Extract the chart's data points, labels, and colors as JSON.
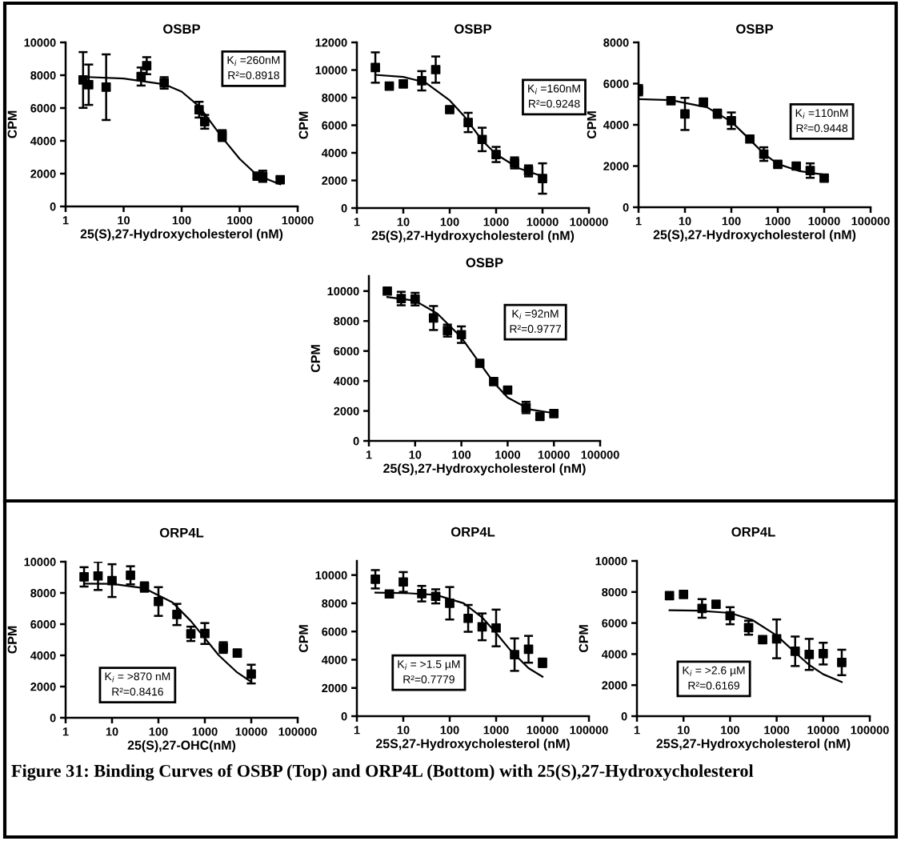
{
  "chart_data": [
    {
      "type": "scatter",
      "title": "OSBP",
      "xlabel": "25(S),27-Hydroxycholesterol (nM)",
      "ylabel": "CPM",
      "log": "x",
      "xlim": [
        1,
        10000
      ],
      "xticks": [
        1,
        10,
        100,
        1000,
        10000
      ],
      "ylim": [
        0,
        10000
      ],
      "yticks": [
        0,
        2000,
        4000,
        6000,
        8000,
        10000
      ],
      "series": [
        {
          "color": "#000000",
          "marker": "square",
          "x": [
            2,
            2.5,
            5,
            20,
            25,
            50,
            200,
            250,
            500,
            2000,
            2500,
            5000
          ],
          "values": [
            7710,
            7420,
            7270,
            7920,
            8580,
            7530,
            5900,
            5160,
            4320,
            1850,
            1840,
            1630
          ],
          "errors": [
            1700,
            1230,
            2000,
            550,
            520,
            350,
            480,
            420,
            330,
            150,
            340,
            150
          ]
        },
        {
          "type": "line",
          "color": "#000000",
          "line_style": "solid",
          "x": [
            2,
            10,
            50,
            100,
            200,
            500,
            1000,
            2000,
            5000
          ],
          "values": [
            7900,
            7800,
            7450,
            7000,
            6100,
            4200,
            2900,
            1900,
            1350
          ]
        }
      ],
      "annotations": [
        "K$_{i}$ =260nM",
        "R²=0.8918"
      ]
    },
    {
      "type": "scatter",
      "title": "OSBP",
      "xlabel": "25(S),27-Hydroxycholesterol (nM)",
      "ylabel": "CPM",
      "log": "x",
      "xlim": [
        1,
        100000
      ],
      "xticks": [
        1,
        10,
        100,
        1000,
        10000,
        100000
      ],
      "ylim": [
        0,
        12000
      ],
      "yticks": [
        0,
        2000,
        4000,
        6000,
        8000,
        10000,
        12000
      ],
      "series": [
        {
          "color": "#000000",
          "marker": "square",
          "x": [
            2.5,
            5,
            10,
            25,
            50,
            100,
            250,
            500,
            1000,
            2500,
            5000,
            10000
          ],
          "values": [
            10180,
            8830,
            8990,
            9220,
            10030,
            7130,
            6200,
            4970,
            3880,
            3270,
            2690,
            2140
          ],
          "errors": [
            1100,
            null,
            null,
            700,
            950,
            null,
            700,
            850,
            550,
            400,
            400,
            1100
          ]
        },
        {
          "type": "line",
          "color": "#000000",
          "line_style": "solid",
          "x": [
            2.5,
            10,
            30,
            100,
            200,
            500,
            1000,
            3000,
            10000
          ],
          "values": [
            9650,
            9500,
            9100,
            7800,
            6700,
            4900,
            3900,
            2900,
            2300
          ]
        }
      ],
      "annotations": [
        "K$_{i}$ =160nM",
        "R²=0.9248"
      ]
    },
    {
      "type": "scatter",
      "title": "OSBP",
      "xlabel": "25(S),27-Hydroxycholesterol (nM)",
      "ylabel": "CPM",
      "log": "x",
      "xlim": [
        1,
        100000
      ],
      "xticks": [
        1,
        10,
        100,
        1000,
        10000,
        100000
      ],
      "ylim": [
        0,
        8000
      ],
      "yticks": [
        0,
        2000,
        4000,
        6000,
        8000
      ],
      "series": [
        {
          "color": "#000000",
          "marker": "square",
          "x": [
            1,
            5,
            10,
            25,
            50,
            100,
            250,
            500,
            1000,
            2500,
            5000,
            10000
          ],
          "values": [
            5680,
            5170,
            4530,
            5100,
            4540,
            4200,
            3310,
            2580,
            2080,
            2000,
            1780,
            1410
          ],
          "errors": [
            250,
            null,
            780,
            150,
            200,
            400,
            null,
            330,
            null,
            null,
            350,
            100
          ]
        },
        {
          "type": "line",
          "color": "#000000",
          "line_style": "solid",
          "x": [
            1,
            5,
            30,
            100,
            200,
            500,
            1000,
            3000,
            10000
          ],
          "values": [
            5250,
            5200,
            4850,
            4150,
            3500,
            2600,
            2100,
            1750,
            1580
          ]
        }
      ],
      "annotations": [
        "K$_{i}$ =110nM",
        "R²=0.9448"
      ]
    },
    {
      "type": "scatter",
      "title": "OSBP",
      "xlabel": "25(S),27-Hydroxycholesterol (nM)",
      "ylabel": "CPM",
      "log": "x",
      "xlim": [
        1,
        100000
      ],
      "xticks": [
        1,
        10,
        100,
        1000,
        10000,
        100000
      ],
      "ylim": [
        0,
        11000
      ],
      "yticks": [
        0,
        2000,
        4000,
        6000,
        8000,
        10000
      ],
      "series": [
        {
          "color": "#000000",
          "marker": "square",
          "x": [
            2.5,
            5,
            10,
            25,
            50,
            100,
            250,
            500,
            1000,
            2500,
            5000,
            10000
          ],
          "values": [
            10000,
            9500,
            9460,
            8200,
            7360,
            7090,
            5180,
            3960,
            3390,
            2230,
            1640,
            1820
          ],
          "errors": [
            null,
            450,
            420,
            800,
            400,
            550,
            null,
            null,
            null,
            380,
            null,
            null
          ]
        },
        {
          "type": "line",
          "color": "#000000",
          "line_style": "solid",
          "x": [
            2.5,
            10,
            30,
            100,
            200,
            500,
            1000,
            3000,
            10000
          ],
          "values": [
            9600,
            9350,
            8500,
            6900,
            5600,
            3900,
            2900,
            2100,
            1850
          ]
        }
      ],
      "annotations": [
        "K$_{i}$ =92nM",
        "R²=0.9777"
      ]
    },
    {
      "type": "scatter",
      "title": "ORP4L",
      "xlabel": "25(S),27-OHC(nM)",
      "ylabel": "CPM",
      "log": "x",
      "xlim": [
        1,
        100000
      ],
      "xticks": [
        1,
        10,
        100,
        1000,
        10000,
        100000
      ],
      "ylim": [
        0,
        10000
      ],
      "yticks": [
        0,
        2000,
        4000,
        6000,
        8000,
        10000
      ],
      "series": [
        {
          "color": "#000000",
          "marker": "square",
          "x": [
            2.5,
            5,
            10,
            25,
            50,
            100,
            250,
            500,
            1000,
            2500,
            5000,
            10000
          ],
          "values": [
            9030,
            9090,
            8790,
            9130,
            8380,
            7450,
            6620,
            5380,
            5400,
            4500,
            4150,
            2800
          ],
          "errors": [
            620,
            900,
            1050,
            580,
            300,
            920,
            680,
            460,
            670,
            340,
            200,
            600
          ]
        },
        {
          "type": "line",
          "color": "#000000",
          "line_style": "solid",
          "x": [
            2.5,
            10,
            50,
            200,
            500,
            1000,
            2000,
            5000,
            10000
          ],
          "values": [
            8600,
            8580,
            8300,
            7400,
            6200,
            5100,
            4000,
            2900,
            2300
          ]
        }
      ],
      "annotations": [
        "K$_{i}$ = >870 nM",
        "R²=0.8416"
      ]
    },
    {
      "type": "scatter",
      "title": "ORP4L",
      "xlabel": "25S,27-Hydroxycholesterol (nM)",
      "ylabel": "CPM",
      "log": "x",
      "xlim": [
        1,
        100000
      ],
      "xticks": [
        1,
        10,
        100,
        1000,
        10000,
        100000
      ],
      "ylim": [
        0,
        11000
      ],
      "yticks": [
        0,
        2000,
        4000,
        6000,
        8000,
        10000
      ],
      "series": [
        {
          "color": "#000000",
          "marker": "square",
          "x": [
            2.5,
            5,
            10,
            25,
            50,
            100,
            250,
            500,
            1000,
            2500,
            5000,
            10000
          ],
          "values": [
            9700,
            8660,
            9510,
            8680,
            8490,
            8000,
            6930,
            6330,
            6250,
            4360,
            4740,
            3780
          ],
          "errors": [
            650,
            null,
            700,
            550,
            500,
            1150,
            950,
            950,
            1300,
            1150,
            950,
            300
          ]
        },
        {
          "type": "line",
          "color": "#000000",
          "line_style": "solid",
          "x": [
            2.5,
            10,
            50,
            200,
            500,
            1000,
            2000,
            5000,
            10000
          ],
          "values": [
            8750,
            8730,
            8600,
            8000,
            7000,
            5900,
            4700,
            3400,
            2800
          ]
        }
      ],
      "annotations": [
        "K$_{i}$ = >1.5 µM",
        "R²=0.7779"
      ]
    },
    {
      "type": "scatter",
      "title": "ORP4L",
      "xlabel": "25S,27-Hydroxycholesterol (nM)",
      "ylabel": "CPM",
      "log": "x",
      "xlim": [
        1,
        100000
      ],
      "xticks": [
        1,
        10,
        100,
        1000,
        10000,
        100000
      ],
      "ylim": [
        0,
        10000
      ],
      "yticks": [
        0,
        2000,
        4000,
        6000,
        8000,
        10000
      ],
      "series": [
        {
          "color": "#000000",
          "marker": "square",
          "x": [
            5,
            10,
            25,
            50,
            100,
            250,
            500,
            1000,
            2500,
            5000,
            10000,
            25000
          ],
          "values": [
            7760,
            7840,
            6940,
            7210,
            6470,
            5700,
            4930,
            4980,
            4180,
            3980,
            4030,
            3460
          ],
          "errors": [
            null,
            null,
            600,
            null,
            550,
            450,
            null,
            1250,
            950,
            1000,
            700,
            820
          ]
        },
        {
          "type": "line",
          "color": "#000000",
          "line_style": "solid",
          "x": [
            5,
            20,
            100,
            300,
            1000,
            2500,
            5000,
            10000,
            25000
          ],
          "values": [
            6820,
            6800,
            6650,
            6200,
            5200,
            4100,
            3300,
            2700,
            2200
          ]
        }
      ],
      "annotations": [
        "K$_{i}$ = >2.6 µM",
        "R²=0.6169",
        "Figure 31: Binding Curves of OSBP (Top) and ORP4L (Bottom) with 25(S),27-Hydroxycholesterol"
      ]
    }
  ]
}
